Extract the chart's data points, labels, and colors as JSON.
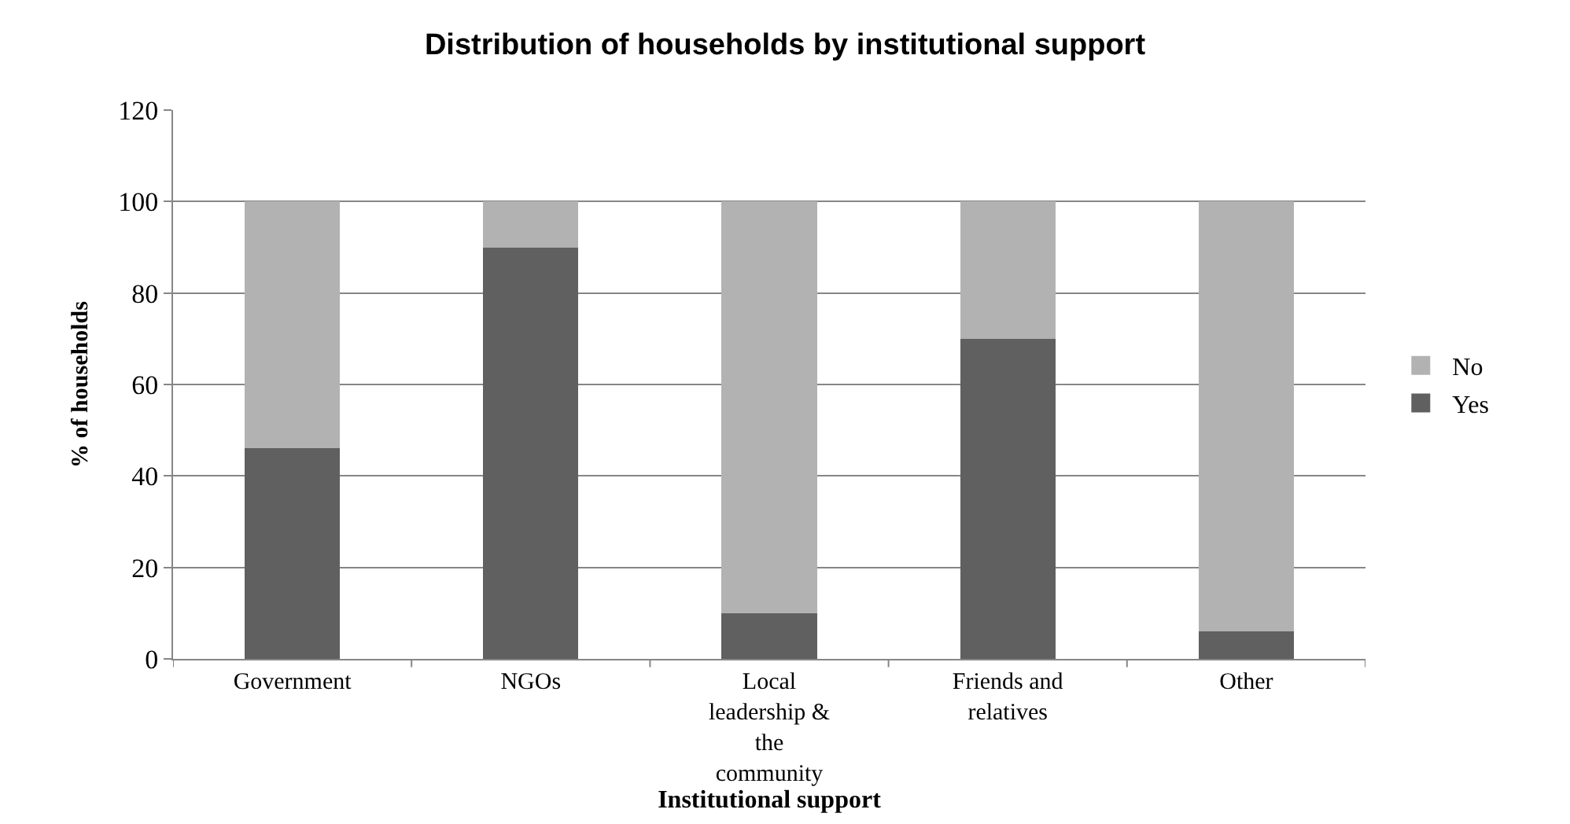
{
  "chart_data": {
    "type": "bar",
    "title": "Distribution of households by institutional support",
    "xlabel": "Institutional support",
    "ylabel": "% of households",
    "categories": [
      "Government",
      "NGOs",
      "Local leadership & the community",
      "Friends and relatives",
      "Other"
    ],
    "series": [
      {
        "name": "Yes",
        "color": "#606060",
        "values": [
          46,
          90,
          10,
          70,
          6
        ]
      },
      {
        "name": "No",
        "color": "#b2b2b2",
        "values": [
          54,
          10,
          90,
          30,
          94
        ]
      }
    ],
    "stacked": true,
    "ylim": [
      0,
      120
    ],
    "yticks": [
      0,
      20,
      40,
      60,
      80,
      100,
      120
    ],
    "grid": "y",
    "legend": "right"
  }
}
